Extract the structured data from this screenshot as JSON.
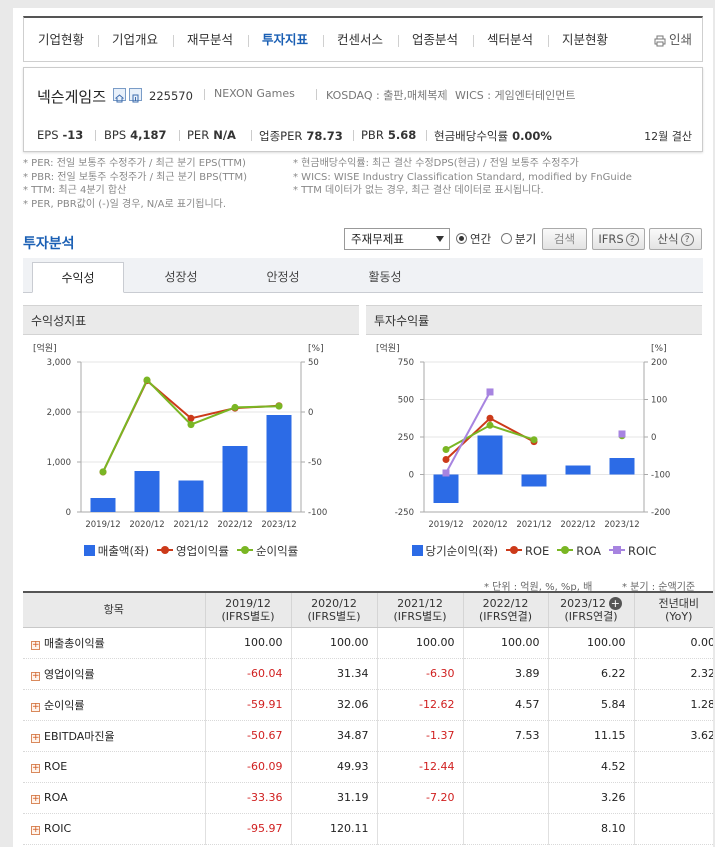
{
  "nav": {
    "items": [
      "기업현황",
      "기업개요",
      "재무분석",
      "투자지표",
      "컨센서스",
      "업종분석",
      "섹터분석",
      "지분현황"
    ],
    "active": "투자지표",
    "print": "인쇄"
  },
  "company": {
    "name": "넥슨게임즈",
    "code": "225570",
    "english": "NEXON Games",
    "market": "KOSDAQ : 출판,매체복제",
    "wics": "WICS : 게임엔터테인먼트",
    "metrics": [
      {
        "label": "EPS",
        "value": "-13"
      },
      {
        "label": "BPS",
        "value": "4,187"
      },
      {
        "label": "PER",
        "value": "N/A"
      },
      {
        "label": "업종PER",
        "value": "78.73"
      },
      {
        "label": "PBR",
        "value": "5.68"
      },
      {
        "label": "현금배당수익률",
        "value": "0.00%"
      }
    ],
    "settlement": "12월 결산"
  },
  "notes": {
    "left": [
      "* PER: 전일 보통주 수정주가 / 최근 분기 EPS(TTM)",
      "* PBR: 전일 보통주 수정주가 / 최근 분기 BPS(TTM)",
      "* TTM: 최근 4분기 합산",
      "* PER, PBR값이 (-)일 경우, N/A로 표기됩니다."
    ],
    "right": [
      "* 현금배당수익률: 최근 결산 수정DPS(현금) / 전일 보통주 수정주가",
      "* WICS: WISE Industry Classification Standard, modified by FnGuide",
      "* TTM 데이터가 없는 경우, 최근 결산 데이터로 표시됩니다."
    ]
  },
  "analysis": {
    "title": "투자분석",
    "select": "주재무제표",
    "radio_annual": "연간",
    "radio_quarter": "분기",
    "search": "검색",
    "ifrs": "IFRS",
    "formula": "산식",
    "tabs": [
      "수익성",
      "성장성",
      "안정성",
      "활동성"
    ]
  },
  "chart_data": [
    {
      "type": "bar+line",
      "title": "수익성지표",
      "unit_left": "[억원]",
      "unit_right": "[%]",
      "categories": [
        "2019/12",
        "2020/12",
        "2021/12",
        "2022/12",
        "2023/12"
      ],
      "left_ticks": [
        "3,000",
        "2,000",
        "1,000",
        "0"
      ],
      "right_ticks": [
        "50",
        "0",
        "-50",
        "-100"
      ],
      "left_range": [
        0,
        3000
      ],
      "right_range": [
        -100,
        50
      ],
      "bars": {
        "name": "매출액(좌)",
        "color": "#2c6be6",
        "values": [
          280,
          820,
          630,
          1320,
          1940
        ]
      },
      "series": [
        {
          "name": "영업이익률",
          "color": "#cc3a1a",
          "marker": "circle",
          "values": [
            -60.04,
            31.34,
            -6.3,
            3.89,
            6.22
          ]
        },
        {
          "name": "순이익률",
          "color": "#7ab624",
          "marker": "circle",
          "values": [
            -59.91,
            32.06,
            -12.62,
            4.57,
            5.84
          ]
        }
      ]
    },
    {
      "type": "bar+line",
      "title": "투자수익률",
      "unit_left": "[억원]",
      "unit_right": "[%]",
      "categories": [
        "2019/12",
        "2020/12",
        "2021/12",
        "2022/12",
        "2023/12"
      ],
      "left_ticks": [
        "750",
        "500",
        "250",
        "0",
        "-250"
      ],
      "right_ticks": [
        "200",
        "100",
        "0",
        "-100",
        "-200"
      ],
      "left_range": [
        -250,
        750
      ],
      "right_range": [
        -200,
        200
      ],
      "bars": {
        "name": "당기순이익(좌)",
        "color": "#2c6be6",
        "values": [
          -190,
          260,
          -80,
          60,
          110
        ]
      },
      "series": [
        {
          "name": "ROE",
          "color": "#cc3a1a",
          "marker": "circle",
          "values": [
            -60.09,
            49.93,
            -12.44,
            null,
            4.52
          ]
        },
        {
          "name": "ROA",
          "color": "#7ab624",
          "marker": "circle",
          "values": [
            -33.36,
            31.19,
            -7.2,
            null,
            3.26
          ]
        },
        {
          "name": "ROIC",
          "color": "#a784e0",
          "marker": "square",
          "values": [
            -95.97,
            120.11,
            null,
            null,
            8.1
          ]
        }
      ]
    }
  ],
  "units_note": "* 단위 : 억원, %, %p, 배",
  "quarter_note": "* 분기 : 순액기준",
  "table": {
    "headers": [
      [
        "항목",
        ""
      ],
      [
        "2019/12",
        "(IFRS별도)"
      ],
      [
        "2020/12",
        "(IFRS별도)"
      ],
      [
        "2021/12",
        "(IFRS별도)"
      ],
      [
        "2022/12",
        "(IFRS연결)"
      ],
      [
        "2023/12",
        "(IFRS연결)"
      ],
      [
        "전년대비",
        "(YoY)"
      ]
    ],
    "rows": [
      {
        "name": "매출총이익률",
        "values": [
          "100.00",
          "100.00",
          "100.00",
          "100.00",
          "100.00",
          "0.00"
        ]
      },
      {
        "name": "영업이익률",
        "values": [
          "-60.04",
          "31.34",
          "-6.30",
          "3.89",
          "6.22",
          "2.32"
        ]
      },
      {
        "name": "순이익률",
        "values": [
          "-59.91",
          "32.06",
          "-12.62",
          "4.57",
          "5.84",
          "1.28"
        ]
      },
      {
        "name": "EBITDA마진율",
        "values": [
          "-50.67",
          "34.87",
          "-1.37",
          "7.53",
          "11.15",
          "3.62"
        ]
      },
      {
        "name": "ROE",
        "values": [
          "-60.09",
          "49.93",
          "-12.44",
          "",
          "4.52",
          ""
        ]
      },
      {
        "name": "ROA",
        "values": [
          "-33.36",
          "31.19",
          "-7.20",
          "",
          "3.26",
          ""
        ]
      },
      {
        "name": "ROIC",
        "values": [
          "-95.97",
          "120.11",
          "",
          "",
          "8.10",
          ""
        ]
      }
    ]
  }
}
